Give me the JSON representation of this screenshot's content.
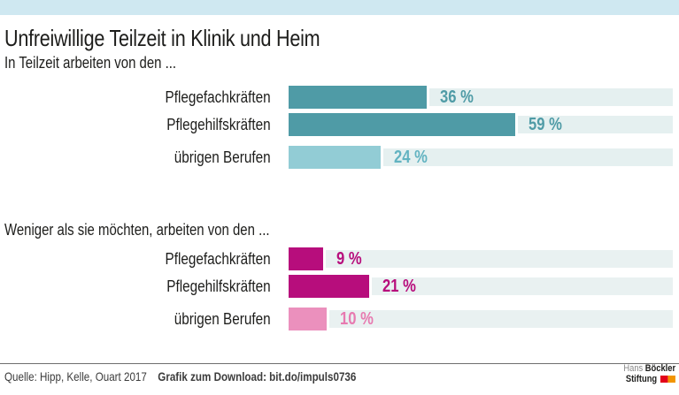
{
  "page": {
    "title": "Unfreiwillige Teilzeit in Klinik und Heim"
  },
  "chart_data": [
    {
      "type": "bar",
      "orientation": "horizontal",
      "subtitle": "In Teilzeit arbeiten von den ...",
      "categories": [
        "Pflegefachkräften",
        "Pflegehilfskräften",
        "übrigen Berufen"
      ],
      "values": [
        36,
        59,
        24
      ],
      "value_labels": [
        "36 %",
        "59 %",
        "24 %"
      ],
      "unit": "%",
      "xlim": [
        0,
        100
      ],
      "grid": false,
      "legend": "none",
      "bar_colors": [
        "#4f9ba6",
        "#4f9ba6",
        "#92ccd5"
      ],
      "value_label_colors": [
        "#4f9ba6",
        "#4f9ba6",
        "#62b3c1"
      ],
      "track_color": "#e5f0f0"
    },
    {
      "type": "bar",
      "orientation": "horizontal",
      "subtitle": "Weniger als sie möchten, arbeiten von den ...",
      "categories": [
        "Pflegefachkräften",
        "Pflegehilfskräften",
        "übrigen Berufen"
      ],
      "values": [
        9,
        21,
        10
      ],
      "value_labels": [
        "9 %",
        "21 %",
        "10 %"
      ],
      "unit": "%",
      "xlim": [
        0,
        100
      ],
      "grid": false,
      "legend": "none",
      "bar_colors": [
        "#b70d7c",
        "#b70d7c",
        "#eb90bd"
      ],
      "value_label_colors": [
        "#b70d7c",
        "#b70d7c",
        "#e77ab0"
      ],
      "track_color": "#e9f1f1"
    }
  ],
  "footer": {
    "source": "Quelle: Hipp, Kelle, Ouart 2017",
    "download_label": "Grafik zum Download: bit.do/impuls0736"
  },
  "logo": {
    "name1": "Hans",
    "name2": "Böckler",
    "name3": "Stiftung"
  },
  "theme": {
    "top_strip": "#cfe8f1",
    "background": "#ffffff",
    "text": "#1d1d1b",
    "footer_text": "#3c3c3c",
    "divider": "#6e6e6e",
    "logo_red": "#e2001a",
    "logo_orange": "#f29400",
    "logo_gray": "#878787"
  }
}
